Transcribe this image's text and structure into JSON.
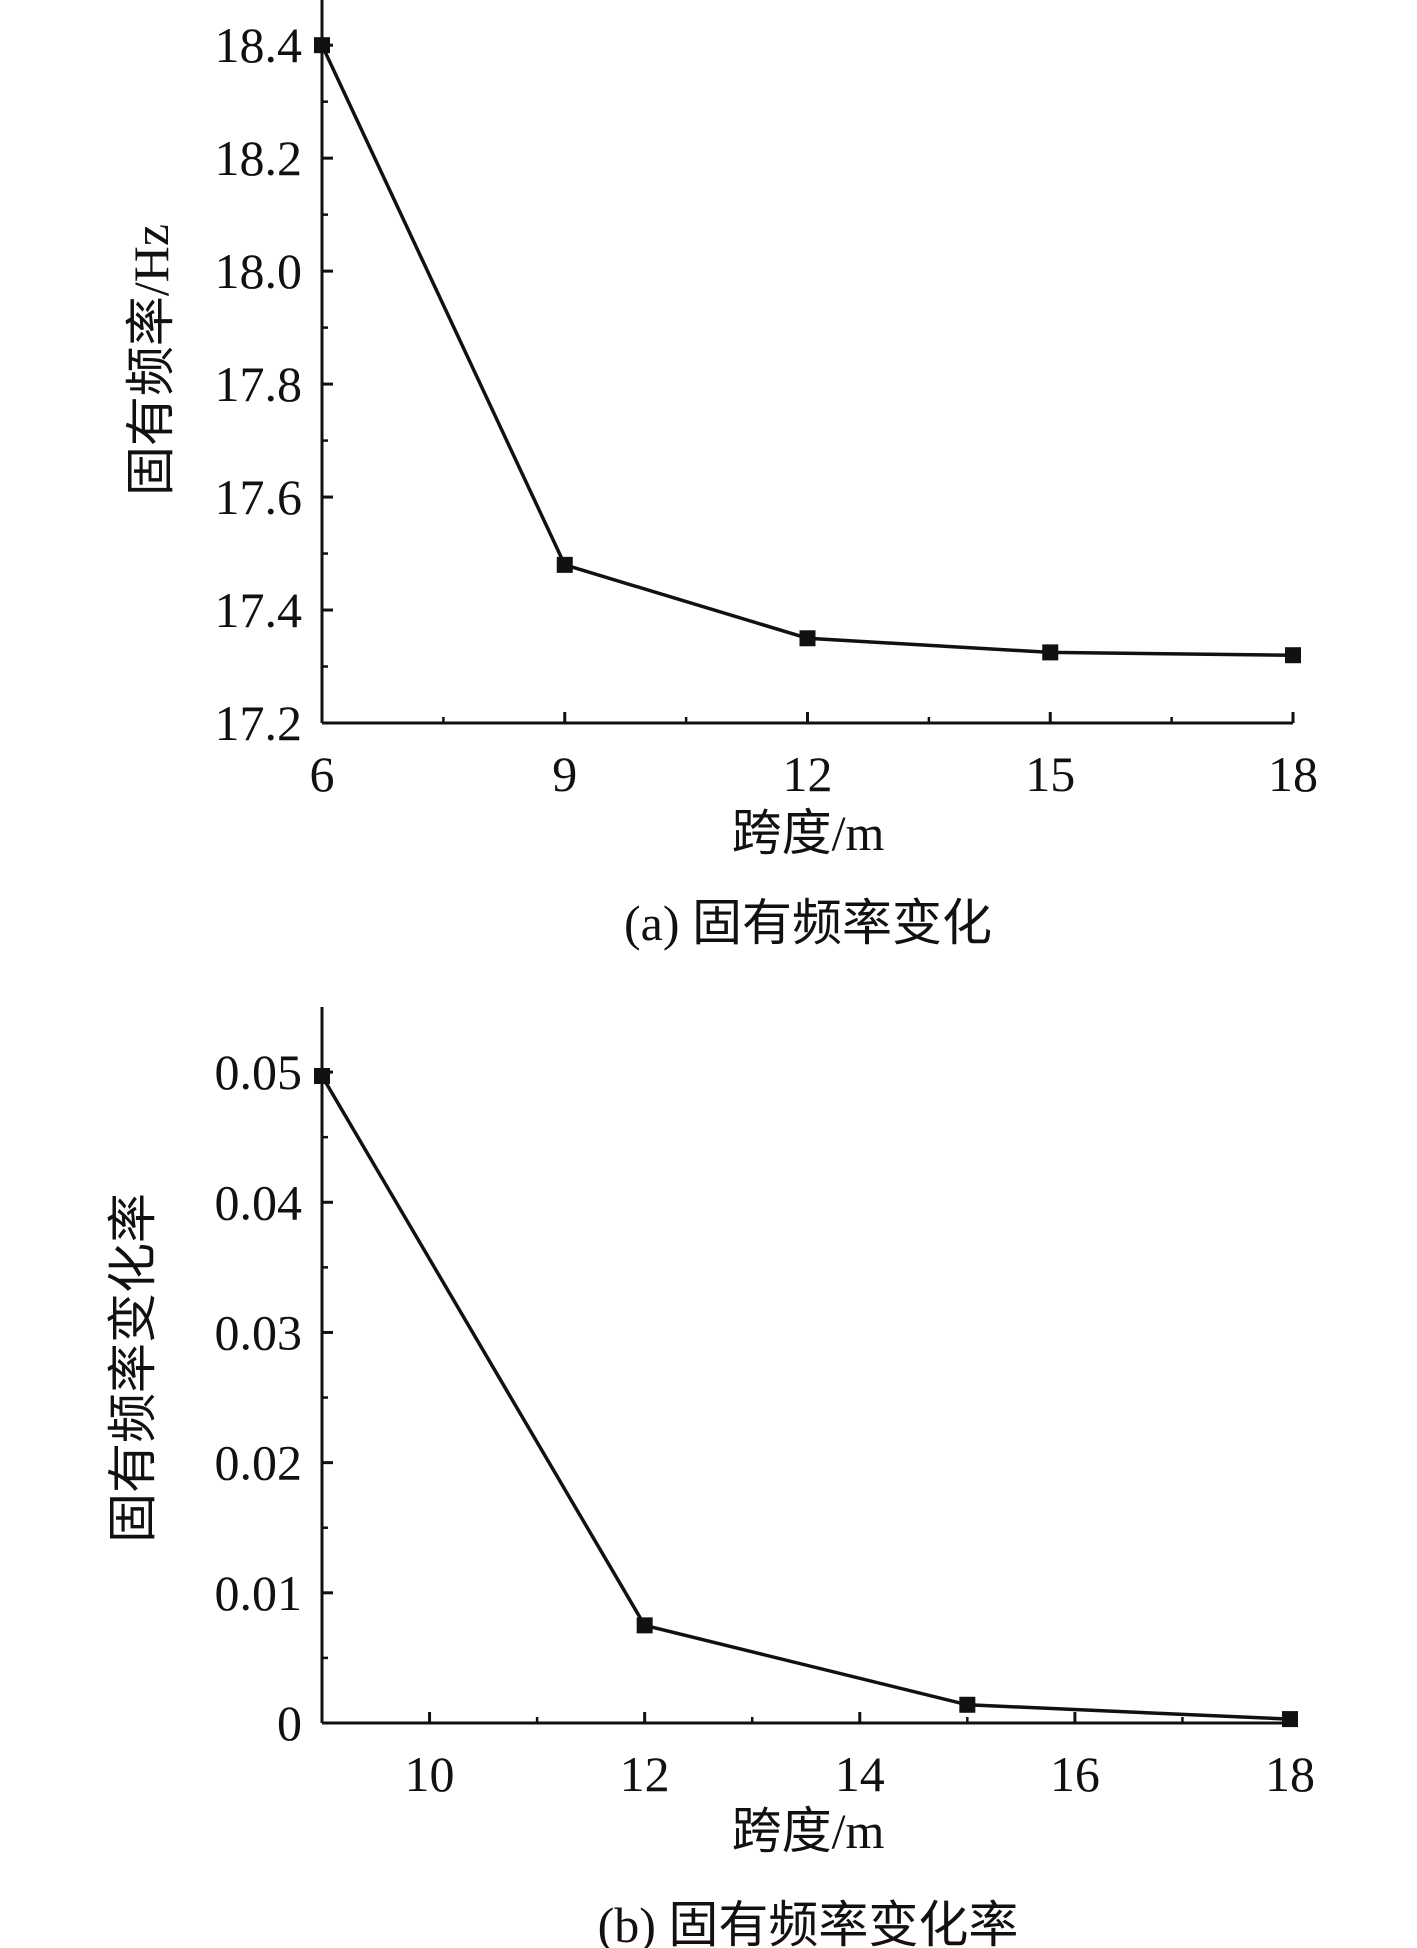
{
  "chart_data": [
    {
      "type": "line",
      "caption": "(a) 固有频率变化",
      "xlabel": "跨度/m",
      "ylabel": "固有频率/Hz",
      "x": [
        6,
        9,
        12,
        15,
        18
      ],
      "series": [
        {
          "values": [
            18.4,
            17.48,
            17.35,
            17.325,
            17.32
          ]
        }
      ],
      "xlim": [
        6,
        18
      ],
      "ylim": [
        17.2,
        18.48
      ],
      "xticks": [
        6,
        9,
        12,
        15,
        18
      ],
      "xtick_labels": [
        "6",
        "9",
        "12",
        "15",
        "18"
      ],
      "yticks": [
        17.2,
        17.4,
        17.6,
        17.8,
        18.0,
        18.2,
        18.4
      ],
      "ytick_labels": [
        "17.2",
        "17.4",
        "17.6",
        "17.8",
        "18.0",
        "18.2",
        "18.4"
      ],
      "marker": "square",
      "line_color": "#111111",
      "grid": false,
      "legend": "none"
    },
    {
      "type": "line",
      "caption": "(b) 固有频率变化率",
      "xlabel": "跨度/m",
      "ylabel": "固有频率变化率",
      "x": [
        9,
        12,
        15,
        18
      ],
      "series": [
        {
          "values": [
            0.0497,
            0.0075,
            0.0014,
            0.0003
          ]
        }
      ],
      "xlim": [
        9,
        18
      ],
      "ylim": [
        0,
        0.055
      ],
      "xticks": [
        10,
        12,
        14,
        16,
        18
      ],
      "xtick_labels": [
        "10",
        "12",
        "14",
        "16",
        "18"
      ],
      "yticks": [
        0,
        0.01,
        0.02,
        0.03,
        0.04,
        0.05
      ],
      "ytick_labels": [
        "0",
        "0.01",
        "0.02",
        "0.03",
        "0.04",
        "0.05"
      ],
      "marker": "square",
      "line_color": "#111111",
      "grid": false,
      "legend": "none"
    }
  ]
}
